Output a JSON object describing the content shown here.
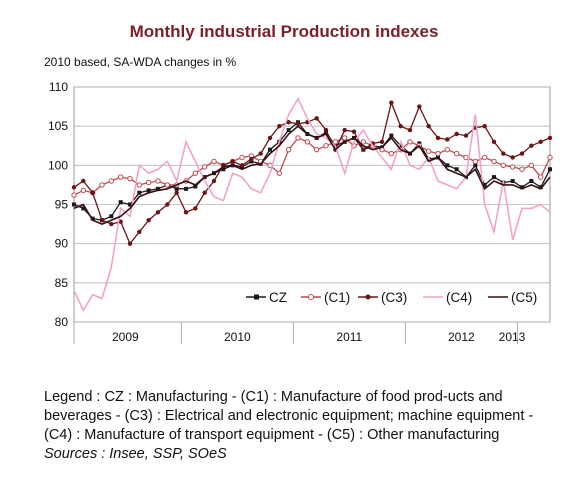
{
  "title": "Monthly industrial Production indexes",
  "subtitle": "2010 based, SA-WDA changes in %",
  "legend_note": "Legend : CZ : Manufacturing - (C1) : Manufacture of food prod-ucts and beverages - (C3) : Electrical and electronic equipment; machine equipment - (C4) : Manufacture of transport equipment - (C5) : Other manufacturing",
  "sources": "Sources : Insee, SSP, SOeS",
  "chart_data": {
    "type": "line",
    "ylim": [
      80,
      110
    ],
    "yticks": [
      80,
      85,
      90,
      95,
      100,
      105,
      110
    ],
    "xlim": [
      0,
      51
    ],
    "xticks": [
      "2009",
      "2010",
      "2011",
      "2012",
      "2013"
    ],
    "legend_placement": "bottom-right",
    "grid": true,
    "series": [
      {
        "name": "CZ",
        "color": "#1a1a1a",
        "marker": "square",
        "values": [
          95.0,
          94.5,
          93.2,
          93.0,
          93.5,
          95.3,
          95.0,
          96.5,
          96.8,
          97.0,
          97.5,
          97.0,
          97.0,
          97.3,
          98.5,
          99.0,
          99.5,
          100.0,
          99.8,
          100.5,
          100.2,
          102.0,
          103.0,
          104.5,
          105.5,
          104.0,
          103.5,
          104.2,
          102.5,
          103.0,
          103.5,
          102.0,
          102.5,
          102.3,
          103.8,
          102.5,
          101.5,
          102.8,
          100.8,
          101.0,
          100.0,
          99.5,
          98.5,
          100.0,
          97.5,
          98.5,
          97.8,
          98.0,
          97.2,
          98.0,
          97.2,
          99.5
        ]
      },
      {
        "name": "(C1)",
        "color": "#c2474f",
        "marker": "circle-open",
        "values": [
          96.2,
          96.8,
          96.5,
          97.5,
          98.0,
          98.5,
          98.3,
          97.5,
          97.8,
          98.0,
          97.5,
          97.5,
          98.0,
          99.0,
          99.8,
          100.5,
          100.0,
          100.5,
          101.0,
          101.2,
          100.5,
          100.0,
          99.0,
          102.0,
          103.5,
          103.0,
          102.0,
          102.5,
          103.0,
          103.5,
          102.5,
          103.0,
          102.5,
          102.0,
          101.5,
          102.0,
          103.0,
          102.5,
          101.8,
          101.5,
          102.0,
          101.5,
          101.0,
          100.5,
          101.0,
          100.5,
          100.0,
          99.8,
          99.5,
          100.0,
          98.5,
          101.0
        ]
      },
      {
        "name": "(C3)",
        "color": "#6b1416",
        "marker": "circle-filled",
        "values": [
          97.2,
          98.0,
          96.5,
          93.0,
          92.5,
          92.8,
          90.0,
          91.5,
          93.0,
          94.0,
          95.0,
          96.5,
          94.0,
          94.5,
          96.5,
          98.0,
          100.0,
          100.5,
          100.0,
          100.8,
          101.5,
          103.5,
          105.0,
          105.5,
          105.3,
          105.5,
          106.0,
          104.5,
          102.0,
          104.5,
          104.3,
          102.0,
          102.8,
          103.0,
          108.0,
          105.0,
          104.5,
          107.5,
          105.0,
          103.5,
          103.3,
          104.0,
          103.8,
          104.8,
          105.0,
          103.0,
          101.5,
          101.0,
          101.5,
          102.5,
          103.0,
          103.5
        ]
      },
      {
        "name": "(C4)",
        "color": "#f2a2c9",
        "marker": "none",
        "values": [
          84.0,
          81.5,
          83.5,
          83.0,
          87.0,
          94.5,
          93.5,
          100.0,
          99.0,
          99.5,
          100.5,
          98.0,
          103.0,
          100.5,
          98.0,
          96.0,
          95.5,
          99.0,
          98.5,
          97.0,
          96.5,
          99.0,
          103.0,
          106.5,
          108.5,
          106.0,
          104.0,
          103.5,
          102.5,
          99.0,
          103.0,
          104.5,
          102.5,
          101.0,
          99.5,
          103.0,
          100.0,
          99.5,
          101.0,
          98.0,
          97.5,
          97.0,
          98.5,
          106.5,
          95.0,
          91.5,
          98.0,
          90.5,
          94.5,
          94.5,
          95.0,
          94.0
        ]
      },
      {
        "name": "(C5)",
        "color": "#3a0e10",
        "marker": "none",
        "values": [
          94.5,
          95.0,
          93.0,
          92.5,
          93.0,
          93.5,
          94.5,
          96.0,
          96.5,
          96.8,
          97.0,
          97.5,
          98.0,
          97.5,
          98.5,
          99.0,
          99.8,
          100.0,
          99.5,
          100.0,
          100.2,
          101.5,
          102.5,
          104.0,
          105.0,
          104.0,
          103.5,
          104.0,
          102.0,
          103.0,
          103.5,
          102.5,
          102.0,
          102.3,
          103.5,
          102.0,
          101.5,
          102.5,
          100.5,
          101.0,
          99.5,
          99.0,
          98.5,
          99.5,
          97.0,
          98.0,
          97.5,
          97.5,
          97.0,
          97.5,
          97.0,
          98.5
        ]
      }
    ]
  }
}
